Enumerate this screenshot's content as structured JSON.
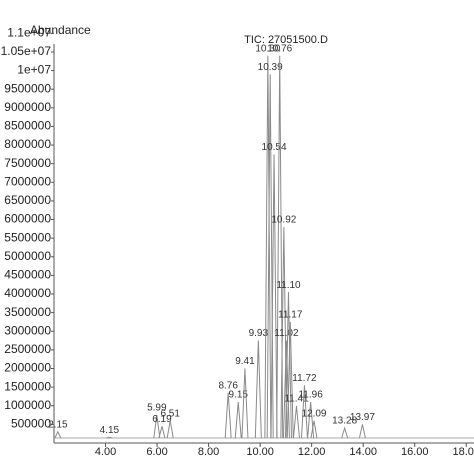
{
  "chart_data": {
    "type": "stick",
    "title": "TIC: 27051500.D",
    "y_label": "Abundance",
    "color": "#8a8a8a",
    "x": [
      2.15,
      4.15,
      5.99,
      6.19,
      6.51,
      8.76,
      9.15,
      9.41,
      9.93,
      10.3,
      10.39,
      10.54,
      10.76,
      10.92,
      11.02,
      11.1,
      11.17,
      11.41,
      11.72,
      11.96,
      12.09,
      13.28,
      13.97
    ],
    "peak_labels": [
      "2.15",
      "4.15",
      "5.99",
      "6.19",
      "6.51",
      "8.76",
      "9.15",
      "9.41",
      "9.93",
      "10.30",
      "10.39",
      "10.54",
      "10.76",
      "10.92",
      "11.02",
      "11.10",
      "11.17",
      "11.41",
      "11.72",
      "11.96",
      "12.09",
      "13.28",
      "13.97"
    ],
    "values": [
      300000,
      150000,
      750000,
      450000,
      600000,
      1350000,
      1100000,
      2000000,
      2750000,
      10400000,
      9900000,
      7750000,
      10400000,
      5800000,
      2750000,
      4050000,
      3250000,
      1000000,
      1550000,
      1100000,
      600000,
      400000,
      500000
    ],
    "xlim": [
      2.0,
      18.3
    ],
    "ylim": [
      0,
      11250000
    ],
    "xticks": [
      {
        "value": 4,
        "label": "4.00"
      },
      {
        "value": 6,
        "label": "6.00"
      },
      {
        "value": 8,
        "label": "8.00"
      },
      {
        "value": 10,
        "label": "10.00"
      },
      {
        "value": 12,
        "label": "12.00"
      },
      {
        "value": 14,
        "label": "14.00"
      },
      {
        "value": 16,
        "label": "16.00"
      },
      {
        "value": 18,
        "label": "18.00"
      }
    ],
    "yticks": [
      500000,
      1000000,
      1500000,
      2000000,
      2500000,
      3000000,
      3500000,
      4000000,
      4500000,
      5000000,
      5500000,
      6000000,
      6500000,
      7000000,
      7500000,
      8000000,
      8500000,
      9000000,
      9500000,
      {
        "value": 10000000,
        "label": "1e+07"
      },
      {
        "value": 10500000,
        "label": "1.05e+07"
      },
      {
        "value": 11000000,
        "label": "1.1e+07"
      }
    ]
  }
}
